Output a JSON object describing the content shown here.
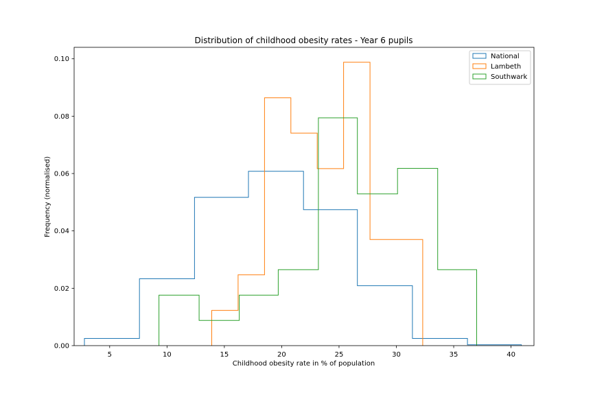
{
  "chart_data": {
    "type": "histogram",
    "title": "Distribution of childhood obesity rates - Year 6 pupils",
    "xlabel": "Childhood obesity rate in % of population",
    "ylabel": "Frequency (normalised)",
    "xlim": [
      1.9,
      42.0
    ],
    "ylim": [
      0,
      0.104
    ],
    "xticks": [
      5,
      10,
      15,
      20,
      25,
      30,
      35,
      40
    ],
    "yticks": [
      0.0,
      0.02,
      0.04,
      0.06,
      0.08,
      0.1
    ],
    "ytick_labels": [
      "0.00",
      "0.02",
      "0.04",
      "0.06",
      "0.08",
      "0.10"
    ],
    "legend_position": "top-right",
    "histtype": "step",
    "series": [
      {
        "name": "National",
        "color": "#1f77b4",
        "bin_edges": [
          2.8,
          7.6,
          12.4,
          17.1,
          21.9,
          26.6,
          31.4,
          36.2,
          40.9
        ],
        "values": [
          0.0025,
          0.0233,
          0.0517,
          0.0608,
          0.0474,
          0.0209,
          0.0025,
          0.0003
        ]
      },
      {
        "name": "Lambeth",
        "color": "#ff7f0e",
        "bin_edges": [
          13.9,
          16.2,
          18.5,
          20.8,
          23.1,
          25.4,
          27.7,
          30.0,
          32.3
        ],
        "values": [
          0.0123,
          0.0247,
          0.0864,
          0.0741,
          0.0617,
          0.0988,
          0.037,
          0.037
        ]
      },
      {
        "name": "Southwark",
        "color": "#2ca02c",
        "bin_edges": [
          9.3,
          12.8,
          16.3,
          19.7,
          23.2,
          26.6,
          30.1,
          33.6,
          37.0
        ],
        "values": [
          0.0176,
          0.0088,
          0.0176,
          0.0265,
          0.0794,
          0.0529,
          0.0618,
          0.0265
        ]
      }
    ]
  }
}
